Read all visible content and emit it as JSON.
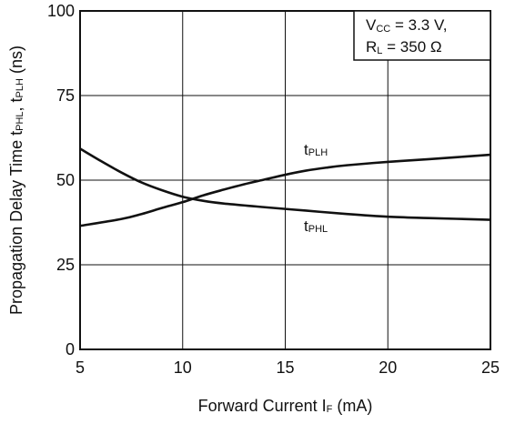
{
  "chart_data": {
    "type": "line",
    "xlabel": {
      "main": "Forward Current  I",
      "sub": "F",
      "unit": " (mA)"
    },
    "ylabel": {
      "pre": "Propagation Delay Time  t",
      "sub1": "PHL",
      "mid": ", t",
      "sub2": "PLH",
      "post": " (ns)"
    },
    "xlim": [
      5,
      25
    ],
    "ylim": [
      0,
      100
    ],
    "x_ticks": [
      5,
      10,
      15,
      20,
      25
    ],
    "y_ticks": [
      0,
      25,
      50,
      75,
      100
    ],
    "grid": true,
    "series": [
      {
        "name": "tPLH",
        "label_main": "t",
        "label_sub": "PLH",
        "x": [
          5,
          7,
          8,
          9,
          10,
          11,
          12,
          13,
          14,
          15,
          16,
          17,
          18,
          20,
          22,
          25
        ],
        "y": [
          36.5,
          38.5,
          40,
          41.8,
          43.5,
          45.5,
          47.2,
          48.8,
          50.2,
          51.6,
          52.8,
          53.7,
          54.4,
          55.4,
          56.2,
          57.5
        ]
      },
      {
        "name": "tPHL",
        "label_main": "t",
        "label_sub": "PHL",
        "x": [
          5,
          6,
          7,
          8,
          9,
          10,
          11,
          12,
          14,
          16,
          18,
          20,
          22,
          25
        ],
        "y": [
          59.3,
          55.7,
          52.3,
          49.3,
          47,
          45.1,
          43.9,
          43.1,
          42,
          41,
          40,
          39.2,
          38.8,
          38.3
        ]
      }
    ],
    "conditions": {
      "line1": {
        "main": "V",
        "sub": "CC",
        "rest": " = 3.3 V,"
      },
      "line2": {
        "main": "R",
        "sub": "L",
        "rest": " = 350 Ω"
      }
    }
  }
}
